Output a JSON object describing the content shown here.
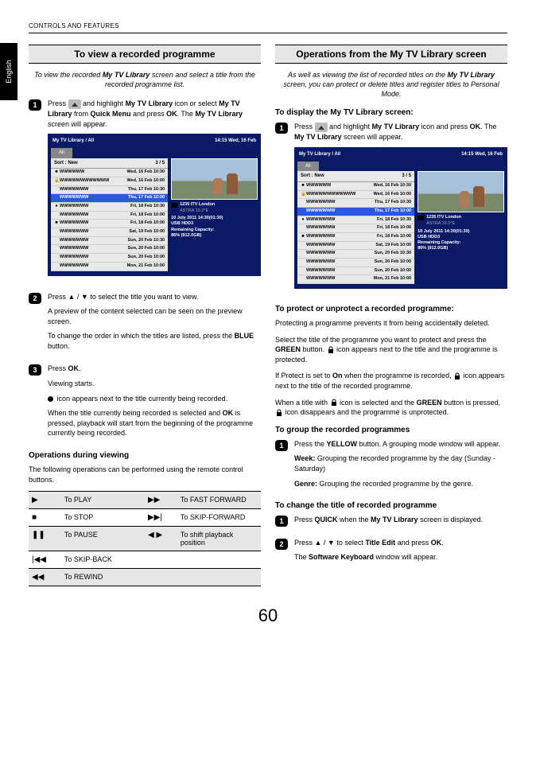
{
  "header": {
    "breadcrumb": "CONTROLS AND FEATURES",
    "language_tab": "English"
  },
  "page_number": "60",
  "left": {
    "title": "To view a recorded programme",
    "intro_a": "To view the recorded ",
    "intro_b": "My TV Library",
    "intro_c": " screen and select a title from the recorded programme list.",
    "step1_a": "Press ",
    "step1_b": " and highlight ",
    "step1_c": "My TV Library",
    "step1_d": " icon or select ",
    "step1_e": "My TV Library",
    "step1_f": " from ",
    "step1_g": "Quick Menu",
    "step1_h": " and press ",
    "step1_i": "OK",
    "step1_j": ". The ",
    "step1_k": "My TV Library",
    "step1_l": " screen will appear.",
    "step2_a": "Press ▲ / ▼ to select the title you want to view.",
    "step2_b": "A preview of the content selected can be seen on the preview screen.",
    "step2_c": "To change the order in which the titles are listed, press the ",
    "step2_d": "BLUE",
    "step2_e": " button.",
    "step3_a": "Press ",
    "step3_b": "OK",
    "step3_c": ".",
    "step3_d": "Viewing starts.",
    "step3_e": " icon appears next to the title currently being recorded.",
    "step3_f": "When the title currently being recorded is selected and ",
    "step3_g": "OK",
    "step3_h": " is pressed, playback will start from the beginning of the programme currently being recorded.",
    "ops_head": "Operations during viewing",
    "ops_intro": "The following operations can be performed using the remote control buttons.",
    "ops": [
      {
        "s1": "▶",
        "l1": "To PLAY",
        "s2": "▶▶",
        "l2": "To FAST FORWARD"
      },
      {
        "s1": "■",
        "l1": "To STOP",
        "s2": "▶▶|",
        "l2": "To SKIP-FORWARD"
      },
      {
        "s1": "❚❚",
        "l1": "To PAUSE",
        "s2": "◀ ▶",
        "l2": "To shift playback position"
      },
      {
        "s1": "|◀◀",
        "l1": "To SKIP-BACK",
        "s2": "",
        "l2": ""
      },
      {
        "s1": "◀◀",
        "l1": "To REWIND",
        "s2": "",
        "l2": ""
      }
    ]
  },
  "right": {
    "title": "Operations from the My TV Library screen",
    "intro_a": "As well as viewing the list of recorded titles on the ",
    "intro_b": "My TV Library",
    "intro_c": " screen, you can protect or delete titles and register titles to Personal Mode.",
    "disp_head": "To display the My TV Library screen:",
    "step1_a": "Press ",
    "step1_b": " and highlight ",
    "step1_c": "My TV Library",
    "step1_d": " icon and press ",
    "step1_e": "OK",
    "step1_f": ". The ",
    "step1_g": "My TV Library",
    "step1_h": " screen will appear.",
    "protect_head": "To protect or unprotect a recorded programme:",
    "protect_a": "Protecting a programme prevents it from being accidentally deleted.",
    "protect_b1": "Select the title of the programme you want to protect and press the ",
    "protect_b2": "GREEN",
    "protect_b3": " button. ",
    "protect_b4": " icon appears next to the title and the programme is protected.",
    "protect_c1": "If Protect is set to ",
    "protect_c2": "On",
    "protect_c3": " when the programme is recorded, ",
    "protect_c4": " icon appears next to the title of the recorded programme.",
    "protect_d1": "When a title with ",
    "protect_d2": " icon is selected and the ",
    "protect_d3": "GREEN",
    "protect_d4": " button is pressed, ",
    "protect_d5": " icon disappears and the programme is unprotected.",
    "group_head": "To group the recorded programmes",
    "group1_a": "Press the ",
    "group1_b": "YELLOW",
    "group1_c": " button. A grouping mode window will appear.",
    "group1_d": "Week:",
    "group1_e": " Grouping the recorded programme by the day (Sunday - Saturday)",
    "group1_f": "Genre:",
    "group1_g": " Grouping the recorded programme by the genre.",
    "changetitle_head": "To change the title of recorded programme",
    "ct1_a": "Press ",
    "ct1_b": "QUICK",
    "ct1_c": " when the ",
    "ct1_d": "My TV Library",
    "ct1_e": " screen is displayed.",
    "ct2_a": "Press ▲ / ▼ to select ",
    "ct2_b": "Title Edit",
    "ct2_c": " and press ",
    "ct2_d": "OK",
    "ct2_e": ".",
    "ct2_f": "The ",
    "ct2_g": "Software Keyboard",
    "ct2_h": " window will appear."
  },
  "tvshot": {
    "title": "My TV Library / All",
    "clock": "14:15 Wed, 16 Feb",
    "tab": "All",
    "sort_label": "Sort : New",
    "sort_count": "3 / 5",
    "rows": [
      {
        "i": "■",
        "t": "WWWWWW",
        "d": "Wed, 16 Feb 10:30"
      },
      {
        "i": "🔒",
        "t": "WWWWWWWWWWWW",
        "d": "Wed, 16 Feb 10:00"
      },
      {
        "i": "",
        "t": "WWWWWWW",
        "d": "Thu, 17 Feb 10:30"
      },
      {
        "i": "",
        "t": "WWWWWWW",
        "d": "Thu, 17 Feb 10:00",
        "sel": true
      },
      {
        "i": "●",
        "t": "WWWWWWW",
        "d": "Fri, 18 Feb 10:30"
      },
      {
        "i": "",
        "t": "WWWWWWW",
        "d": "Fri, 18 Feb 10:00"
      },
      {
        "i": "■",
        "t": "WWWWWWW",
        "d": "Fri, 18 Feb 10:00"
      },
      {
        "i": "",
        "t": "WWWWWWW",
        "d": "Sat, 19 Feb 10:00"
      },
      {
        "i": "",
        "t": "WWWWWWW",
        "d": "Sun, 20 Feb 10:30"
      },
      {
        "i": "",
        "t": "WWWWWWW",
        "d": "Sun, 20 Feb 10:00"
      },
      {
        "i": "",
        "t": "WWWWWWW",
        "d": "Sun, 20 Feb 10:00"
      },
      {
        "i": "",
        "t": "WWWWWWW",
        "d": "Mon, 21 Feb 10:00"
      }
    ],
    "channel": "1235 ITV London",
    "sat": "ASTRA 19.2°E",
    "meta1": "10 July 2011  14:30(01:30)",
    "meta2": "USB HDD3",
    "meta3": "Remaining Capacity:",
    "meta4": "86% (912.0GB)"
  }
}
